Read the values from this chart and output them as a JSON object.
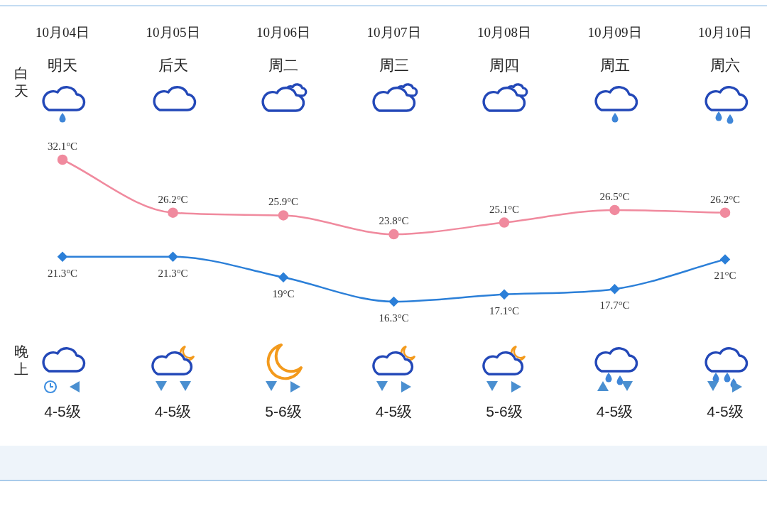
{
  "chart_data": {
    "type": "line",
    "categories": [
      "10月04日",
      "10月05日",
      "10月06日",
      "10月07日",
      "10月08日",
      "10月09日",
      "10月10日"
    ],
    "series": [
      {
        "color": "#f08a9e",
        "marker": "circle",
        "values": [
          32.1,
          26.2,
          25.9,
          23.8,
          25.1,
          26.5,
          26.2
        ],
        "value_labels": [
          "32.1°C",
          "26.2°C",
          "25.9°C",
          "23.8°C",
          "25.1°C",
          "26.5°C",
          "26.2°C"
        ]
      },
      {
        "color": "#2b7fd8",
        "marker": "diamond",
        "values": [
          21.3,
          21.3,
          19,
          16.3,
          17.1,
          17.7,
          21
        ],
        "value_labels": [
          "21.3°C",
          "21.3°C",
          "19°C",
          "16.3°C",
          "17.1°C",
          "17.7°C",
          "21°C"
        ]
      }
    ],
    "annotations": [
      "白天",
      "晚上",
      "明天",
      "后天",
      "周二",
      "周三",
      "周四",
      "周五",
      "周六",
      "4-5级",
      "4-5级",
      "5-6级",
      "4-5级",
      "5-6级",
      "4-5级",
      "4-5级"
    ],
    "tick_labels": "x",
    "grid": false,
    "legend": false
  }
}
